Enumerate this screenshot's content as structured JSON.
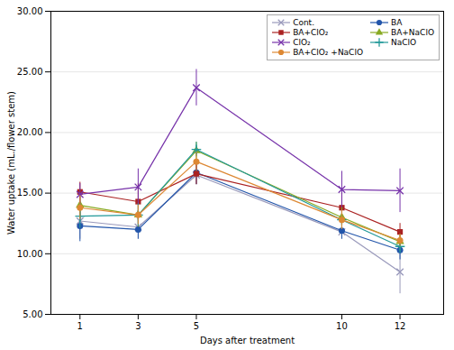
{
  "chart_data": {
    "type": "line",
    "x": [
      1,
      3,
      5,
      10,
      12
    ],
    "xlabel": "Days after treatment",
    "ylabel": "Water uptake (mL./flower stem)",
    "series": [
      {
        "name": "Cont.",
        "color": "#9999bb",
        "marker": "x",
        "values": [
          12.7,
          12.2,
          16.5,
          11.8,
          8.5
        ],
        "errors": [
          1.5,
          1.0,
          0.8,
          0.6,
          1.8
        ]
      },
      {
        "name": "BA",
        "color": "#2255aa",
        "marker": "circle",
        "values": [
          12.3,
          12.0,
          16.7,
          11.9,
          10.3
        ],
        "errors": [
          1.3,
          0.8,
          1.0,
          0.7,
          0.8
        ]
      },
      {
        "name": "BA+ClO₂",
        "color": "#aa2222",
        "marker": "square",
        "values": [
          15.1,
          14.3,
          16.6,
          13.8,
          11.8
        ],
        "errors": [
          0.8,
          1.5,
          0.9,
          1.2,
          0.7
        ]
      },
      {
        "name": "BA+NaClO",
        "color": "#88aa22",
        "marker": "triangle",
        "values": [
          14.0,
          13.2,
          18.5,
          13.0,
          11.0
        ],
        "errors": [
          1.0,
          1.0,
          0.7,
          0.9,
          0.6
        ]
      },
      {
        "name": "ClO₂",
        "color": "#7733aa",
        "marker": "x",
        "values": [
          14.9,
          15.5,
          23.7,
          15.3,
          15.2
        ],
        "errors": [
          0.9,
          1.5,
          1.5,
          1.5,
          1.8
        ]
      },
      {
        "name": "NaClO",
        "color": "#229999",
        "marker": "plus",
        "values": [
          13.1,
          13.2,
          18.6,
          12.8,
          10.6
        ],
        "errors": [
          1.0,
          0.9,
          0.6,
          0.8,
          0.6
        ]
      },
      {
        "name": "BA+ClO₂ +NaClO",
        "color": "#dd8833",
        "marker": "circle",
        "values": [
          13.8,
          13.2,
          17.6,
          12.8,
          11.1
        ],
        "errors": [
          1.0,
          0.8,
          0.8,
          0.8,
          0.5
        ]
      }
    ],
    "xlim": [
      0.0,
      13.5
    ],
    "ylim": [
      5.0,
      30.0
    ],
    "xticks": [
      1,
      3,
      5,
      10,
      12
    ],
    "yticks": [
      {
        "value": 5.0,
        "label": "5.00"
      },
      {
        "value": 10.0,
        "label": "10.00"
      },
      {
        "value": 15.0,
        "label": "15.00"
      },
      {
        "value": 20.0,
        "label": "20.00"
      },
      {
        "value": 25.0,
        "label": "25.00"
      },
      {
        "value": 30.0,
        "label": "30.00"
      }
    ],
    "grid": true,
    "legend": "upper right"
  }
}
